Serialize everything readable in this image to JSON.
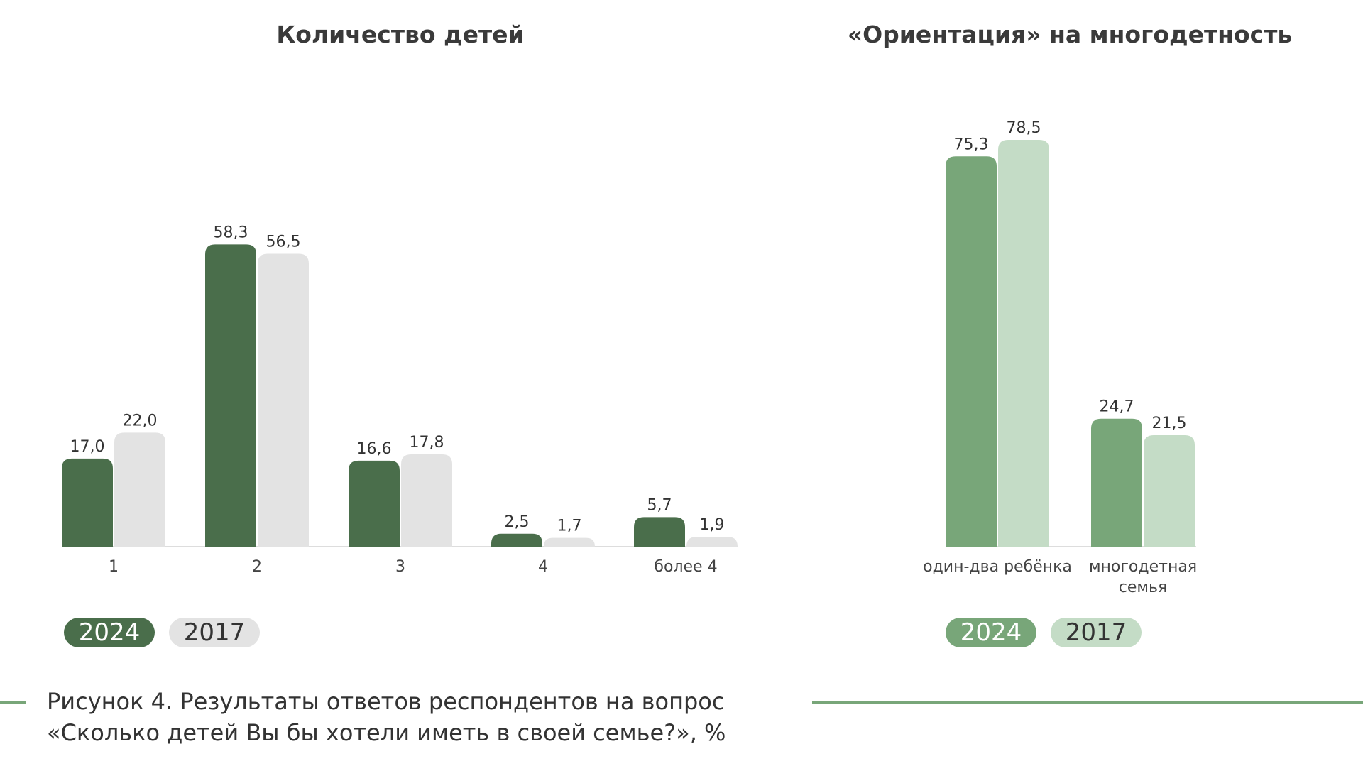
{
  "chart_data": [
    {
      "type": "bar",
      "title": "Количество детей",
      "categories": [
        "1",
        "2",
        "3",
        "4",
        "более 4"
      ],
      "series": [
        {
          "name": "2024",
          "values": [
            17.0,
            58.3,
            16.6,
            2.5,
            5.7
          ],
          "labels": [
            "17,0",
            "58,3",
            "16,6",
            "2,5",
            "5,7"
          ],
          "color": "#4a6e4b"
        },
        {
          "name": "2017",
          "values": [
            22.0,
            56.5,
            17.8,
            1.7,
            1.9
          ],
          "labels": [
            "22,0",
            "56,5",
            "17,8",
            "1,7",
            "1,9"
          ],
          "color": "#e3e3e3"
        }
      ],
      "legend": "bottom-left",
      "grid": false
    },
    {
      "type": "bar",
      "title": "«Ориентация» на многодетность",
      "categories": [
        "один-два ребёнка",
        "многодетная семья"
      ],
      "series": [
        {
          "name": "2024",
          "values": [
            75.3,
            24.7
          ],
          "labels": [
            "75,3",
            "24,7"
          ],
          "color": "#78a679"
        },
        {
          "name": "2017",
          "values": [
            78.5,
            21.5
          ],
          "labels": [
            "78,5",
            "21,5"
          ],
          "color": "#c4dcc6"
        }
      ],
      "legend": "bottom-left",
      "grid": false
    }
  ],
  "caption": {
    "line1": "Рисунок 4. Результаты ответов респондентов на вопрос",
    "line2": "«Сколько детей Вы бы хотели иметь в своей семье?», %"
  },
  "colors": {
    "accent_line": "#78a679",
    "baseline": "#dddddd"
  }
}
